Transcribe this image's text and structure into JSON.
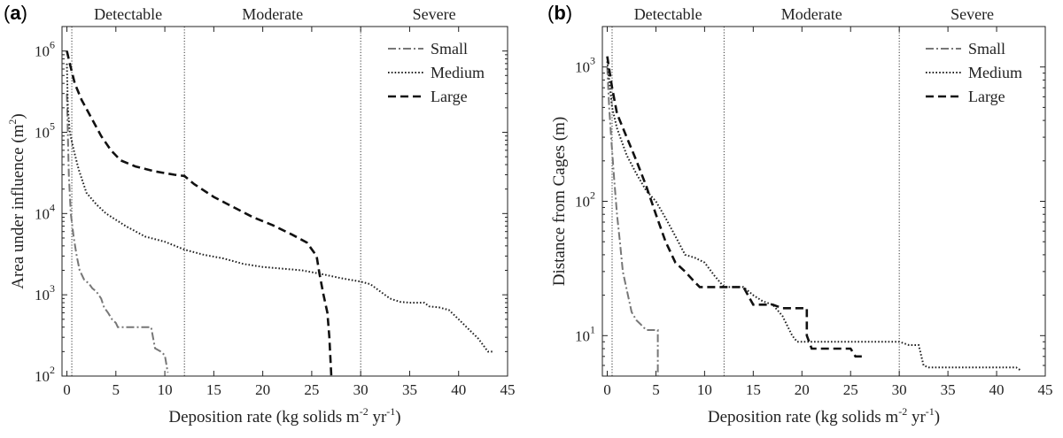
{
  "panels": [
    {
      "letter": "(a)",
      "zones": [
        "Detectable",
        "Moderate",
        "Severe"
      ],
      "xlabel": {
        "main": "Deposition rate (kg solids m",
        "exp1": "-2",
        "mid": " yr",
        "exp2": "-1",
        "end": ")"
      },
      "ylabel": {
        "main": "Area under influence (m",
        "exp": "2",
        "end": ")"
      },
      "x_ticks": [
        "0",
        "5",
        "10",
        "15",
        "20",
        "25",
        "30",
        "35",
        "40",
        "45"
      ],
      "y_ticks": [
        {
          "base": "10",
          "exp": "2"
        },
        {
          "base": "10",
          "exp": "3"
        },
        {
          "base": "10",
          "exp": "4"
        },
        {
          "base": "10",
          "exp": "5"
        },
        {
          "base": "10",
          "exp": "6"
        }
      ],
      "legend": [
        "Small",
        "Medium",
        "Large"
      ]
    },
    {
      "letter": "(b)",
      "zones": [
        "Detectable",
        "Moderate",
        "Severe"
      ],
      "xlabel": {
        "main": "Deposition rate (kg solids m",
        "exp1": "-2",
        "mid": " yr",
        "exp2": "-1",
        "end": ")"
      },
      "ylabel": {
        "main": "Distance from Cages (m)"
      },
      "x_ticks": [
        "0",
        "5",
        "10",
        "15",
        "20",
        "25",
        "30",
        "35",
        "40",
        "45"
      ],
      "y_ticks": [
        {
          "base": "10",
          "exp": "1"
        },
        {
          "base": "10",
          "exp": "2"
        },
        {
          "base": "10",
          "exp": "3"
        }
      ],
      "legend": [
        "Small",
        "Medium",
        "Large"
      ]
    }
  ],
  "chart_data": [
    {
      "type": "line",
      "panel": "a",
      "x_scale": "linear",
      "y_scale": "log",
      "xlim": [
        -0.5,
        45
      ],
      "ylim": [
        100,
        2000000
      ],
      "vlines": [
        0.5,
        12,
        30
      ],
      "series": [
        {
          "name": "Small",
          "color": "#777777",
          "dash": "9,3,2,3",
          "points": [
            [
              0,
              300000
            ],
            [
              0.2,
              30000
            ],
            [
              0.4,
              10000
            ],
            [
              0.7,
              5000
            ],
            [
              1,
              3000
            ],
            [
              1.3,
              2000
            ],
            [
              1.8,
              1500
            ],
            [
              2.2,
              1400
            ],
            [
              2.6,
              1200
            ],
            [
              3,
              1100
            ],
            [
              3.5,
              900
            ],
            [
              3.8,
              700
            ],
            [
              4.2,
              600
            ],
            [
              4.6,
              500
            ],
            [
              5,
              450
            ],
            [
              5.2,
              400
            ],
            [
              8,
              400
            ],
            [
              8.6,
              400
            ],
            [
              9,
              220
            ],
            [
              9.6,
              200
            ],
            [
              10,
              180
            ],
            [
              10.3,
              110
            ]
          ]
        },
        {
          "name": "Medium",
          "color": "#222222",
          "dash": "1.6,2.2",
          "points": [
            [
              0,
              700000
            ],
            [
              0.1,
              200000
            ],
            [
              0.3,
              100000
            ],
            [
              0.7,
              60000
            ],
            [
              1.2,
              35000
            ],
            [
              2,
              18000
            ],
            [
              3,
              13000
            ],
            [
              4,
              10000
            ],
            [
              6,
              7000
            ],
            [
              8,
              5200
            ],
            [
              10,
              4500
            ],
            [
              12,
              3600
            ],
            [
              14,
              3100
            ],
            [
              16,
              2800
            ],
            [
              18,
              2400
            ],
            [
              20,
              2200
            ],
            [
              22,
              2100
            ],
            [
              24,
              2000
            ],
            [
              26,
              1800
            ],
            [
              28,
              1600
            ],
            [
              30,
              1450
            ],
            [
              31,
              1350
            ],
            [
              32,
              1100
            ],
            [
              33,
              900
            ],
            [
              34,
              820
            ],
            [
              35,
              800
            ],
            [
              36.5,
              800
            ],
            [
              37,
              720
            ],
            [
              38,
              700
            ],
            [
              39,
              650
            ],
            [
              40,
              500
            ],
            [
              41,
              380
            ],
            [
              42,
              290
            ],
            [
              43,
              200
            ],
            [
              43.5,
              200
            ]
          ]
        },
        {
          "name": "Large",
          "color": "#111111",
          "dash": "9,5",
          "points": [
            [
              0,
              1000000
            ],
            [
              0.3,
              700000
            ],
            [
              0.8,
              400000
            ],
            [
              1.5,
              250000
            ],
            [
              2.5,
              150000
            ],
            [
              3.5,
              90000
            ],
            [
              4.5,
              60000
            ],
            [
              5.5,
              45000
            ],
            [
              7,
              38000
            ],
            [
              9,
              33000
            ],
            [
              11,
              30000
            ],
            [
              12,
              29000
            ],
            [
              13,
              23000
            ],
            [
              15,
              16000
            ],
            [
              17,
              12000
            ],
            [
              19,
              9000
            ],
            [
              21,
              7200
            ],
            [
              23,
              5500
            ],
            [
              24.5,
              4400
            ],
            [
              25.5,
              3000
            ],
            [
              25.8,
              1800
            ],
            [
              26.2,
              1000
            ],
            [
              26.6,
              600
            ],
            [
              26.8,
              300
            ],
            [
              27,
              100
            ]
          ]
        }
      ]
    },
    {
      "type": "line",
      "panel": "b",
      "x_scale": "linear",
      "y_scale": "log",
      "xlim": [
        -0.5,
        45
      ],
      "ylim": [
        5,
        2000
      ],
      "vlines": [
        0.5,
        12,
        30
      ],
      "series": [
        {
          "name": "Small",
          "color": "#777777",
          "dash": "9,3,2,3",
          "points": [
            [
              0,
              1000
            ],
            [
              0.2,
              500
            ],
            [
              0.4,
              300
            ],
            [
              0.7,
              150
            ],
            [
              1,
              80
            ],
            [
              1.3,
              50
            ],
            [
              1.6,
              30
            ],
            [
              2,
              22
            ],
            [
              2.5,
              15
            ],
            [
              3,
              13
            ],
            [
              3.5,
              12
            ],
            [
              4,
              11
            ],
            [
              5,
              11
            ],
            [
              5.2,
              11
            ],
            [
              5.2,
              5
            ]
          ]
        },
        {
          "name": "Medium",
          "color": "#222222",
          "dash": "1.6,2.2",
          "points": [
            [
              0,
              1100
            ],
            [
              0.5,
              500
            ],
            [
              1,
              350
            ],
            [
              2,
              220
            ],
            [
              3,
              160
            ],
            [
              4,
              120
            ],
            [
              5,
              100
            ],
            [
              6,
              75
            ],
            [
              7,
              55
            ],
            [
              8,
              40
            ],
            [
              9,
              38
            ],
            [
              10,
              35
            ],
            [
              11,
              28
            ],
            [
              12,
              23
            ],
            [
              14,
              23
            ],
            [
              15,
              20
            ],
            [
              16,
              18
            ],
            [
              17,
              17
            ],
            [
              18,
              14
            ],
            [
              19,
              10
            ],
            [
              19.5,
              9
            ],
            [
              25,
              9
            ],
            [
              30,
              9
            ],
            [
              31,
              8.5
            ],
            [
              32,
              8.5
            ],
            [
              32.5,
              6
            ],
            [
              33,
              5.8
            ],
            [
              42,
              5.8
            ],
            [
              42.5,
              5.5
            ]
          ]
        },
        {
          "name": "Large",
          "color": "#111111",
          "dash": "9,5",
          "points": [
            [
              0,
              1200
            ],
            [
              0.5,
              700
            ],
            [
              1,
              450
            ],
            [
              2,
              300
            ],
            [
              3,
              200
            ],
            [
              4,
              130
            ],
            [
              5,
              80
            ],
            [
              6,
              50
            ],
            [
              7,
              35
            ],
            [
              8,
              30
            ],
            [
              9,
              25
            ],
            [
              9.5,
              23
            ],
            [
              14,
              23
            ],
            [
              15,
              17
            ],
            [
              17,
              17
            ],
            [
              18,
              16
            ],
            [
              20.5,
              16
            ],
            [
              20.5,
              10
            ],
            [
              21,
              8
            ],
            [
              25,
              8
            ],
            [
              25.5,
              7
            ],
            [
              26.5,
              7
            ]
          ]
        }
      ]
    }
  ]
}
